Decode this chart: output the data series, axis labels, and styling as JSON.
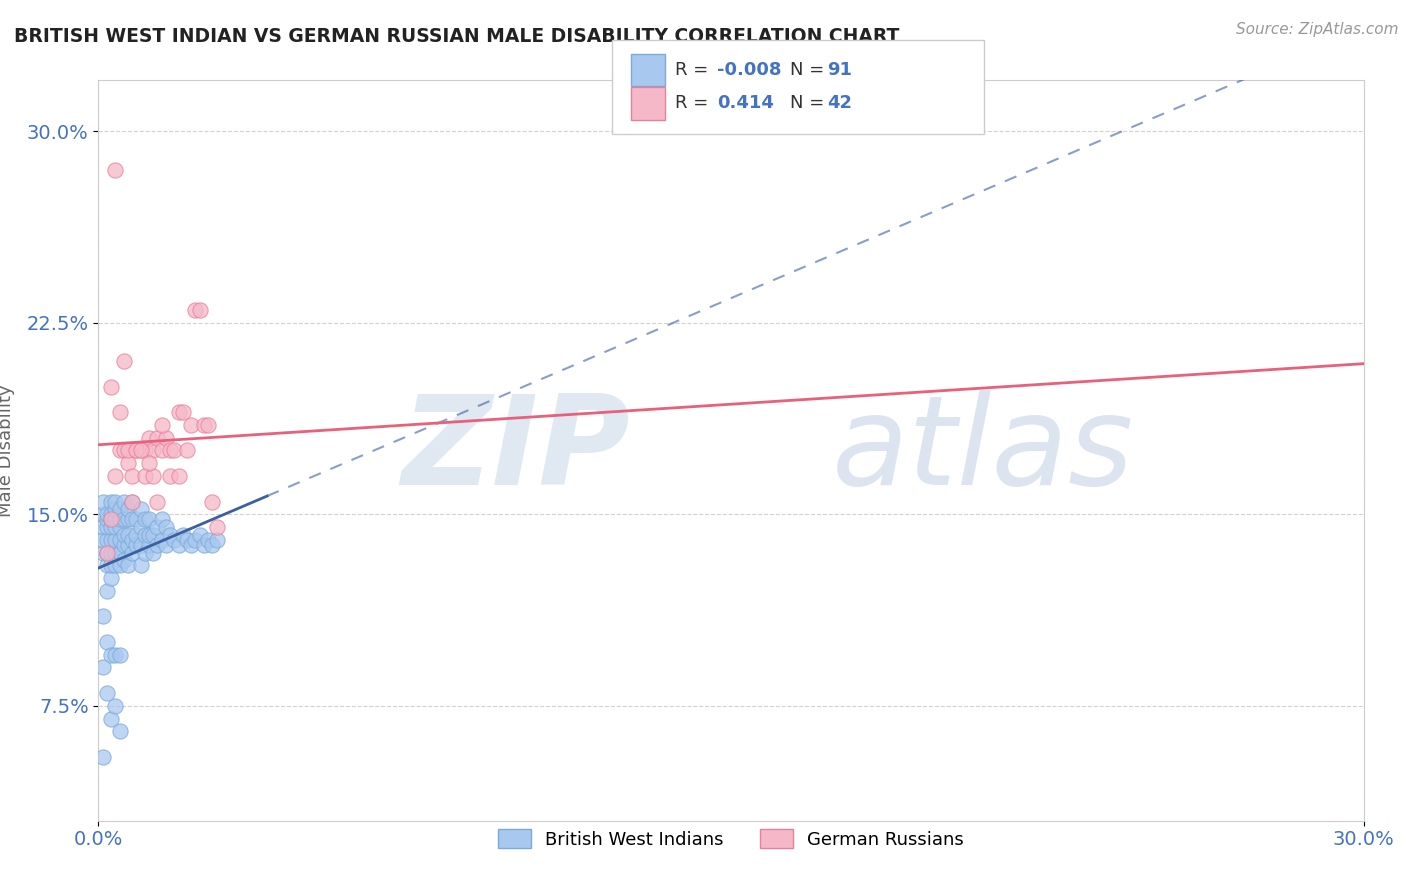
{
  "title": "BRITISH WEST INDIAN VS GERMAN RUSSIAN MALE DISABILITY CORRELATION CHART",
  "source": "Source: ZipAtlas.com",
  "ylabel": "Male Disability",
  "xlim": [
    0.0,
    0.3
  ],
  "ylim": [
    0.03,
    0.32
  ],
  "x_ticks": [
    0.0,
    0.3
  ],
  "x_tick_labels": [
    "0.0%",
    "30.0%"
  ],
  "y_ticks": [
    0.075,
    0.15,
    0.225,
    0.3
  ],
  "y_tick_labels": [
    "7.5%",
    "15.0%",
    "22.5%",
    "30.0%"
  ],
  "bwi_fill_color": "#A8C8F0",
  "bwi_edge_color": "#7AAAD8",
  "gr_fill_color": "#F5B8C8",
  "gr_edge_color": "#E88098",
  "line_bwi_color": "#3B5FA0",
  "line_gr_color": "#E8607A",
  "R_bwi": -0.008,
  "N_bwi": 91,
  "R_gr": 0.414,
  "N_gr": 42,
  "legend_labels": [
    "British West Indians",
    "German Russians"
  ],
  "bwi_x": [
    0.001,
    0.001,
    0.001,
    0.001,
    0.001,
    0.002,
    0.002,
    0.002,
    0.002,
    0.002,
    0.002,
    0.002,
    0.003,
    0.003,
    0.003,
    0.003,
    0.003,
    0.003,
    0.003,
    0.003,
    0.004,
    0.004,
    0.004,
    0.004,
    0.004,
    0.004,
    0.004,
    0.005,
    0.005,
    0.005,
    0.005,
    0.005,
    0.005,
    0.006,
    0.006,
    0.006,
    0.006,
    0.006,
    0.007,
    0.007,
    0.007,
    0.007,
    0.007,
    0.008,
    0.008,
    0.008,
    0.008,
    0.009,
    0.009,
    0.009,
    0.01,
    0.01,
    0.01,
    0.01,
    0.011,
    0.011,
    0.011,
    0.012,
    0.012,
    0.012,
    0.013,
    0.013,
    0.014,
    0.014,
    0.015,
    0.015,
    0.016,
    0.016,
    0.017,
    0.018,
    0.019,
    0.02,
    0.021,
    0.022,
    0.023,
    0.024,
    0.025,
    0.026,
    0.027,
    0.028,
    0.001,
    0.001,
    0.001,
    0.002,
    0.002,
    0.003,
    0.003,
    0.004,
    0.004,
    0.005,
    0.005
  ],
  "bwi_y": [
    0.135,
    0.14,
    0.145,
    0.15,
    0.155,
    0.12,
    0.13,
    0.135,
    0.14,
    0.145,
    0.148,
    0.15,
    0.125,
    0.13,
    0.135,
    0.14,
    0.145,
    0.148,
    0.15,
    0.155,
    0.13,
    0.135,
    0.14,
    0.145,
    0.148,
    0.152,
    0.155,
    0.13,
    0.135,
    0.14,
    0.145,
    0.148,
    0.152,
    0.132,
    0.138,
    0.142,
    0.148,
    0.155,
    0.13,
    0.138,
    0.142,
    0.148,
    0.152,
    0.135,
    0.14,
    0.148,
    0.155,
    0.138,
    0.142,
    0.148,
    0.13,
    0.138,
    0.145,
    0.152,
    0.135,
    0.142,
    0.148,
    0.138,
    0.142,
    0.148,
    0.135,
    0.142,
    0.138,
    0.145,
    0.14,
    0.148,
    0.138,
    0.145,
    0.142,
    0.14,
    0.138,
    0.142,
    0.14,
    0.138,
    0.14,
    0.142,
    0.138,
    0.14,
    0.138,
    0.14,
    0.11,
    0.09,
    0.055,
    0.1,
    0.08,
    0.095,
    0.07,
    0.095,
    0.075,
    0.095,
    0.065
  ],
  "gr_x": [
    0.002,
    0.003,
    0.004,
    0.005,
    0.006,
    0.007,
    0.008,
    0.009,
    0.01,
    0.011,
    0.012,
    0.013,
    0.014,
    0.015,
    0.016,
    0.017,
    0.018,
    0.019,
    0.02,
    0.021,
    0.022,
    0.023,
    0.024,
    0.025,
    0.026,
    0.027,
    0.028,
    0.003,
    0.005,
    0.007,
    0.009,
    0.011,
    0.013,
    0.015,
    0.017,
    0.019,
    0.004,
    0.006,
    0.008,
    0.01,
    0.012,
    0.014
  ],
  "gr_y": [
    0.135,
    0.148,
    0.165,
    0.175,
    0.175,
    0.17,
    0.165,
    0.175,
    0.175,
    0.175,
    0.18,
    0.175,
    0.18,
    0.175,
    0.18,
    0.175,
    0.175,
    0.19,
    0.19,
    0.175,
    0.185,
    0.23,
    0.23,
    0.185,
    0.185,
    0.155,
    0.145,
    0.2,
    0.19,
    0.175,
    0.175,
    0.165,
    0.165,
    0.185,
    0.165,
    0.165,
    0.285,
    0.21,
    0.155,
    0.175,
    0.17,
    0.155
  ]
}
